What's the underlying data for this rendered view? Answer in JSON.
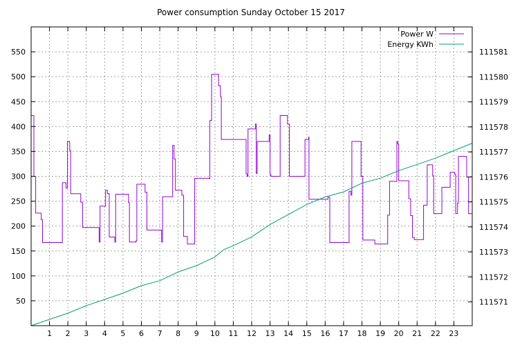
{
  "chart_data": {
    "type": "line",
    "title": "Power consumption Sunday October 15 2017",
    "xlabel": "",
    "ylabel": "",
    "xlim": [
      0,
      24
    ],
    "ylim": [
      0,
      600
    ],
    "y2lim": [
      111570.05,
      111582.0
    ],
    "x_ticks": [
      1,
      2,
      3,
      4,
      5,
      6,
      7,
      8,
      9,
      10,
      11,
      12,
      13,
      14,
      15,
      16,
      17,
      18,
      19,
      20,
      21,
      22,
      23
    ],
    "x_tick_labels": [
      "1",
      "2",
      "3",
      "4",
      "5",
      "6",
      "7",
      "8",
      "9",
      "10",
      "11",
      "12",
      "13",
      "14",
      "15",
      "16",
      "17",
      "18",
      "19",
      "20",
      "21",
      "22",
      "23"
    ],
    "y_ticks": [
      50,
      100,
      150,
      200,
      250,
      300,
      350,
      400,
      450,
      500,
      550
    ],
    "y_tick_labels": [
      "50",
      "100",
      "150",
      "200",
      "250",
      "300",
      "350",
      "400",
      "450",
      "500",
      "550"
    ],
    "y2_ticks": [
      111571,
      111572,
      111573,
      111574,
      111575,
      111576,
      111577,
      111578,
      111579,
      111580,
      111581
    ],
    "y2_tick_labels": [
      "111571",
      "111572",
      "111573",
      "111574",
      "111575",
      "111576",
      "111577",
      "111578",
      "111579",
      "111580",
      "111581"
    ],
    "grid": true,
    "legend_position": "top-right",
    "series": [
      {
        "name": "Power W",
        "axis": "left",
        "color": "#9400d3",
        "step": true,
        "points": [
          [
            0.0,
            422
          ],
          [
            0.15,
            300
          ],
          [
            0.25,
            226
          ],
          [
            0.55,
            213
          ],
          [
            0.62,
            167
          ],
          [
            1.7,
            287
          ],
          [
            1.9,
            276
          ],
          [
            1.98,
            370
          ],
          [
            2.1,
            352
          ],
          [
            2.15,
            265
          ],
          [
            2.7,
            248
          ],
          [
            2.8,
            197
          ],
          [
            3.7,
            168
          ],
          [
            3.75,
            240
          ],
          [
            4.05,
            272
          ],
          [
            4.15,
            265
          ],
          [
            4.25,
            178
          ],
          [
            4.55,
            168
          ],
          [
            4.6,
            264
          ],
          [
            5.3,
            247
          ],
          [
            5.35,
            168
          ],
          [
            5.7,
            170
          ],
          [
            5.75,
            284
          ],
          [
            6.2,
            268
          ],
          [
            6.3,
            192
          ],
          [
            7.1,
            168
          ],
          [
            7.15,
            259
          ],
          [
            7.7,
            362
          ],
          [
            7.78,
            335
          ],
          [
            7.85,
            272
          ],
          [
            8.2,
            262
          ],
          [
            8.3,
            179
          ],
          [
            8.5,
            164
          ],
          [
            8.9,
            296
          ],
          [
            9.7,
            295
          ],
          [
            9.72,
            412
          ],
          [
            9.82,
            505
          ],
          [
            10.2,
            482
          ],
          [
            10.3,
            460
          ],
          [
            10.35,
            374
          ],
          [
            11.7,
            305
          ],
          [
            11.75,
            300
          ],
          [
            11.8,
            395
          ],
          [
            12.2,
            405
          ],
          [
            12.25,
            306
          ],
          [
            12.3,
            370
          ],
          [
            12.95,
            383
          ],
          [
            13.0,
            303
          ],
          [
            13.05,
            300
          ],
          [
            13.55,
            422
          ],
          [
            13.95,
            405
          ],
          [
            14.05,
            300
          ],
          [
            14.9,
            374
          ],
          [
            15.1,
            379
          ],
          [
            15.12,
            254
          ],
          [
            16.15,
            258
          ],
          [
            16.25,
            167
          ],
          [
            17.3,
            270
          ],
          [
            17.4,
            262
          ],
          [
            17.45,
            370
          ],
          [
            17.95,
            300
          ],
          [
            18.05,
            172
          ],
          [
            18.7,
            164
          ],
          [
            19.4,
            222
          ],
          [
            19.5,
            290
          ],
          [
            19.9,
            370
          ],
          [
            19.95,
            365
          ],
          [
            20.0,
            291
          ],
          [
            20.55,
            255
          ],
          [
            20.65,
            221
          ],
          [
            20.75,
            177
          ],
          [
            20.85,
            173
          ],
          [
            21.35,
            242
          ],
          [
            21.55,
            323
          ],
          [
            21.85,
            301
          ],
          [
            21.9,
            225
          ],
          [
            22.35,
            278
          ],
          [
            22.8,
            308
          ],
          [
            23.05,
            304
          ],
          [
            23.1,
            225
          ],
          [
            23.2,
            246
          ],
          [
            23.25,
            340
          ],
          [
            23.7,
            298
          ],
          [
            23.8,
            225
          ],
          [
            24.0,
            225
          ]
        ]
      },
      {
        "name": "Energy KWh",
        "axis": "right",
        "color": "#009e73",
        "step": false,
        "points": [
          [
            0.0,
            111570.05
          ],
          [
            1.0,
            111570.3
          ],
          [
            2.0,
            111570.55
          ],
          [
            3.0,
            111570.85
          ],
          [
            4.0,
            111571.1
          ],
          [
            5.0,
            111571.35
          ],
          [
            6.0,
            111571.65
          ],
          [
            7.0,
            111571.85
          ],
          [
            8.0,
            111572.2
          ],
          [
            9.0,
            111572.45
          ],
          [
            10.0,
            111572.8
          ],
          [
            10.5,
            111573.1
          ],
          [
            11.0,
            111573.25
          ],
          [
            12.0,
            111573.6
          ],
          [
            13.0,
            111574.1
          ],
          [
            14.0,
            111574.5
          ],
          [
            15.0,
            111574.9
          ],
          [
            16.0,
            111575.2
          ],
          [
            17.0,
            111575.4
          ],
          [
            18.0,
            111575.75
          ],
          [
            19.0,
            111575.95
          ],
          [
            20.0,
            111576.25
          ],
          [
            21.0,
            111576.5
          ],
          [
            22.0,
            111576.75
          ],
          [
            23.0,
            111577.05
          ],
          [
            24.0,
            111577.35
          ]
        ]
      }
    ]
  }
}
